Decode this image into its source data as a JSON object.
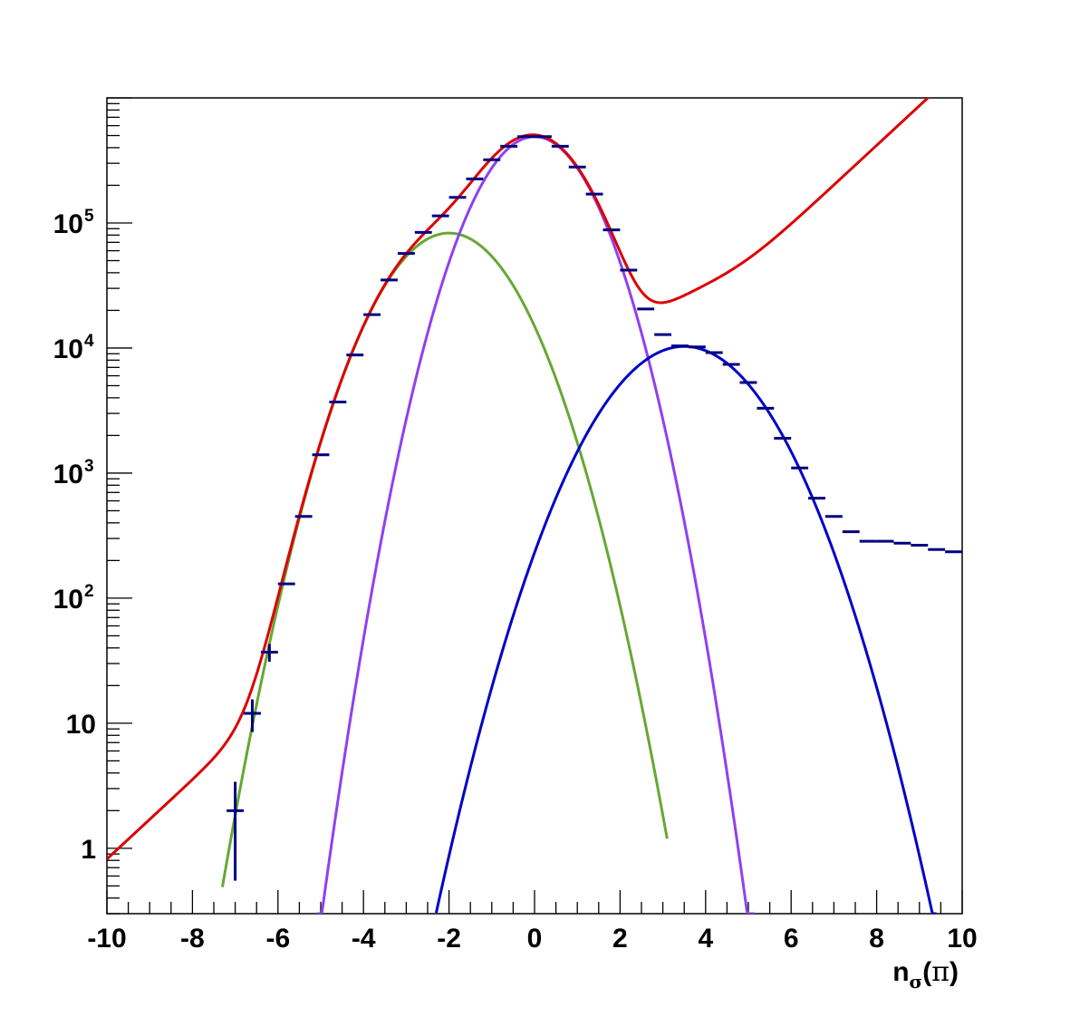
{
  "chart_data": {
    "type": "line",
    "title": "",
    "xlabel": {
      "base": "n",
      "subscript": "σ",
      "open": "(",
      "symbol": "π",
      "close": ")"
    },
    "ylabel": "",
    "xlim": [
      -10,
      10
    ],
    "ylim": [
      0.3,
      1000000
    ],
    "yscale": "log",
    "grid": false,
    "x_ticks": [
      {
        "value": -10,
        "label": "-10"
      },
      {
        "value": -8,
        "label": "-8"
      },
      {
        "value": -6,
        "label": "-6"
      },
      {
        "value": -4,
        "label": "-4"
      },
      {
        "value": -2,
        "label": "-2"
      },
      {
        "value": 0,
        "label": "0"
      },
      {
        "value": 2,
        "label": "2"
      },
      {
        "value": 4,
        "label": "4"
      },
      {
        "value": 6,
        "label": "6"
      },
      {
        "value": 8,
        "label": "8"
      },
      {
        "value": 10,
        "label": "10"
      }
    ],
    "y_ticks": [
      {
        "value": 1,
        "label": "1",
        "exp": ""
      },
      {
        "value": 10,
        "label": "10",
        "exp": ""
      },
      {
        "value": 100,
        "label": "10",
        "exp": "2"
      },
      {
        "value": 1000,
        "label": "10",
        "exp": "3"
      },
      {
        "value": 10000,
        "label": "10",
        "exp": "4"
      },
      {
        "value": 100000,
        "label": "10",
        "exp": "5"
      }
    ],
    "data_points": {
      "color": "#000080",
      "x_halfwidth": 0.2,
      "points": [
        {
          "x": -7.0,
          "y": 2,
          "ylow": 0.55,
          "yhigh": 3.4
        },
        {
          "x": -6.6,
          "y": 12,
          "ylow": 8.5,
          "yhigh": 15.5
        },
        {
          "x": -6.2,
          "y": 37,
          "ylow": 31,
          "yhigh": 43
        },
        {
          "x": -5.8,
          "y": 130
        },
        {
          "x": -5.4,
          "y": 450
        },
        {
          "x": -5.0,
          "y": 1400
        },
        {
          "x": -4.6,
          "y": 3700
        },
        {
          "x": -4.2,
          "y": 8800
        },
        {
          "x": -3.8,
          "y": 18500
        },
        {
          "x": -3.4,
          "y": 35000
        },
        {
          "x": -3.0,
          "y": 57000
        },
        {
          "x": -2.6,
          "y": 84000
        },
        {
          "x": -2.2,
          "y": 114000
        },
        {
          "x": -1.8,
          "y": 160000
        },
        {
          "x": -1.4,
          "y": 225000
        },
        {
          "x": -1.0,
          "y": 320000
        },
        {
          "x": -0.6,
          "y": 410000
        },
        {
          "x": -0.2,
          "y": 490000
        },
        {
          "x": 0.2,
          "y": 490000
        },
        {
          "x": 0.6,
          "y": 410000
        },
        {
          "x": 1.0,
          "y": 280000
        },
        {
          "x": 1.4,
          "y": 170000
        },
        {
          "x": 1.8,
          "y": 88000
        },
        {
          "x": 2.2,
          "y": 42000
        },
        {
          "x": 2.6,
          "y": 20500
        },
        {
          "x": 3.0,
          "y": 12800
        },
        {
          "x": 3.4,
          "y": 10400
        },
        {
          "x": 3.8,
          "y": 10200
        },
        {
          "x": 4.2,
          "y": 9200
        },
        {
          "x": 4.6,
          "y": 7400
        },
        {
          "x": 5.0,
          "y": 5300
        },
        {
          "x": 5.4,
          "y": 3300
        },
        {
          "x": 5.8,
          "y": 1900
        },
        {
          "x": 6.2,
          "y": 1100
        },
        {
          "x": 6.6,
          "y": 630
        },
        {
          "x": 7.0,
          "y": 450
        },
        {
          "x": 7.4,
          "y": 340
        },
        {
          "x": 7.8,
          "y": 285
        },
        {
          "x": 8.2,
          "y": 285
        },
        {
          "x": 8.6,
          "y": 275
        },
        {
          "x": 9.0,
          "y": 265
        },
        {
          "x": 9.4,
          "y": 245
        },
        {
          "x": 9.8,
          "y": 235
        }
      ]
    },
    "series": [
      {
        "color": "#66a832",
        "model": {
          "kind": "gauss",
          "amplitude": 83000,
          "mean": -2.0,
          "sigma": 1.08,
          "xmin": -7.3,
          "xmax": 3.1
        }
      },
      {
        "color": "#9040f0",
        "model": {
          "kind": "gauss",
          "amplitude": 490000,
          "mean": 0.0,
          "sigma": 0.93,
          "xmin": -5.1,
          "xmax": 5.15
        }
      },
      {
        "color": "#0000c8",
        "model": {
          "kind": "gauss",
          "amplitude": 10300,
          "mean": 3.5,
          "sigma": 1.27,
          "xmin": -2.3,
          "xmax": 9.4
        }
      },
      {
        "color": "#dd0000",
        "model": {
          "kind": "sum",
          "xmin": -10.0,
          "xmax": 10.0
        }
      }
    ]
  }
}
